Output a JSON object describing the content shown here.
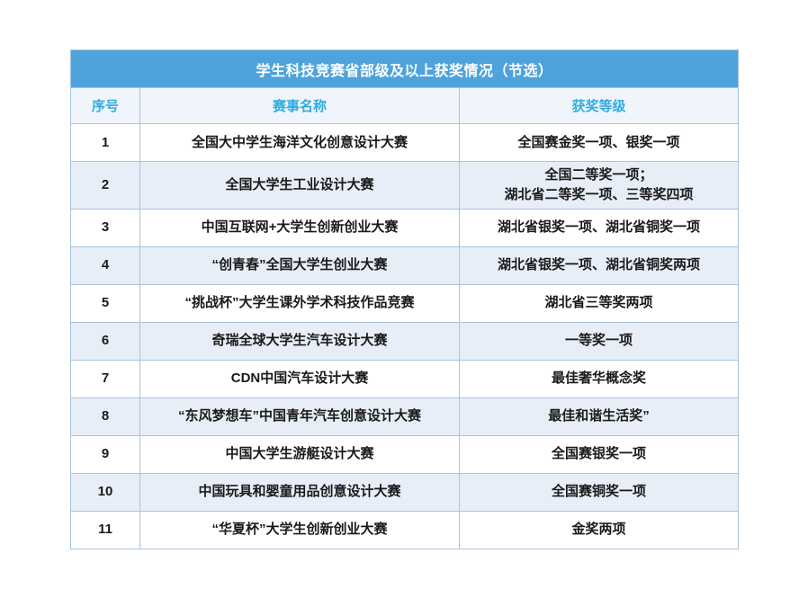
{
  "table": {
    "title": "学生科技竞赛省部级及以上获奖情况（节选）",
    "columns": {
      "no": "序号",
      "name": "赛事名称",
      "award": "获奖等级"
    },
    "rows": [
      {
        "no": "1",
        "name": "全国大中学生海洋文化创意设计大赛",
        "award": "全国赛金奖一项、银奖一项"
      },
      {
        "no": "2",
        "name": "全国大学生工业设计大赛",
        "award": "全国二等奖一项；\n湖北省二等奖一项、三等奖四项"
      },
      {
        "no": "3",
        "name": "中国互联网+大学生创新创业大赛",
        "award": "湖北省银奖一项、湖北省铜奖一项"
      },
      {
        "no": "4",
        "name": "“创青春”全国大学生创业大赛",
        "award": "湖北省银奖一项、湖北省铜奖两项"
      },
      {
        "no": "5",
        "name": "“挑战杯”大学生课外学术科技作品竞赛",
        "award": "湖北省三等奖两项"
      },
      {
        "no": "6",
        "name": "奇瑞全球大学生汽车设计大赛",
        "award": "一等奖一项"
      },
      {
        "no": "7",
        "name": "CDN中国汽车设计大赛",
        "award": "最佳奢华概念奖"
      },
      {
        "no": "8",
        "name": "“东风梦想车”中国青年汽车创意设计大赛",
        "award": "最佳和谐生活奖”"
      },
      {
        "no": "9",
        "name": "中国大学生游艇设计大赛",
        "award": "全国赛银奖一项"
      },
      {
        "no": "10",
        "name": "中国玩具和婴童用品创意设计大赛",
        "award": "全国赛铜奖一项"
      },
      {
        "no": "11",
        "name": "“华夏杯”大学生创新创业大赛",
        "award": "金奖两项"
      }
    ],
    "colors": {
      "title_bar_bg": "#4ea3dc",
      "title_text": "#ffffff",
      "header_bg": "#eff5fb",
      "header_text": "#2face2",
      "row_even_bg": "#e8eef7",
      "row_odd_bg": "#ffffff",
      "body_text": "#1a1a1a",
      "grid_border": "#a9c3de"
    }
  }
}
